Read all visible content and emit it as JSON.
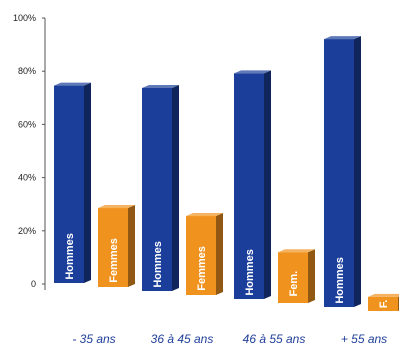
{
  "chart_data": {
    "type": "bar",
    "categories": [
      "- 35 ans",
      "36 à 45 ans",
      "46 à 55 ans",
      "+ 55 ans"
    ],
    "y_ticks": [
      "0",
      "20%",
      "40%",
      "60%",
      "80%",
      "100%"
    ],
    "ylim": [
      0,
      100
    ],
    "series": [
      {
        "values": [
          70,
          72,
          80,
          95
        ],
        "bar_labels": [
          "Hommes",
          "Hommes",
          "Hommes",
          "Hommes"
        ],
        "color": "#1a3e9a"
      },
      {
        "values": [
          28,
          28,
          18,
          5
        ],
        "bar_labels": [
          "Femmes",
          "Femmes",
          "Fem.",
          "F."
        ],
        "color": "#f0921e"
      }
    ],
    "grid": false
  }
}
